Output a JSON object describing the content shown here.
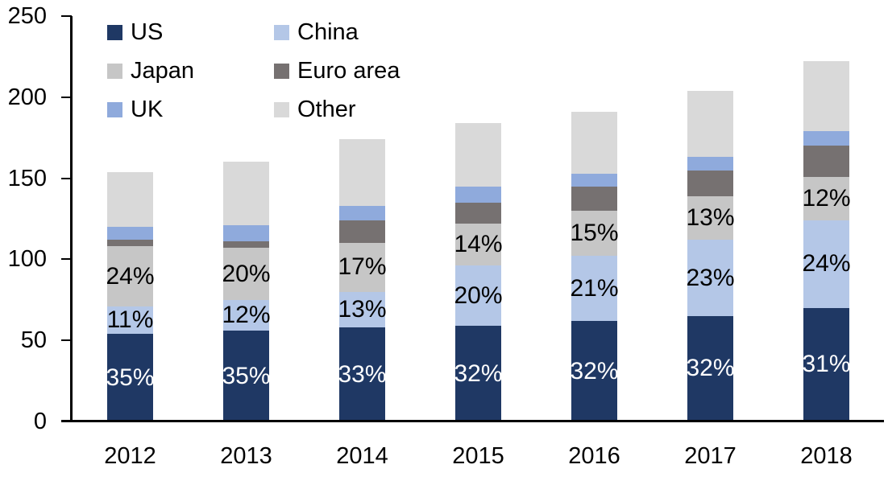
{
  "chart_data": {
    "type": "bar",
    "stacked": true,
    "title": "",
    "xlabel": "",
    "ylabel": "",
    "categories": [
      "2012",
      "2013",
      "2014",
      "2015",
      "2016",
      "2017",
      "2018"
    ],
    "series": [
      {
        "name": "US",
        "color": "#1F3864",
        "values": [
          54,
          56,
          58,
          59,
          62,
          65,
          70
        ],
        "segment_labels": [
          "35%",
          "35%",
          "33%",
          "32%",
          "32%",
          "32%",
          "31%"
        ],
        "segment_label_color": "#FFFFFF"
      },
      {
        "name": "China",
        "color": "#B4C7E7",
        "values": [
          17,
          19,
          22,
          37,
          40,
          47,
          54
        ],
        "segment_labels": [
          "11%",
          "12%",
          "13%",
          "20%",
          "21%",
          "23%",
          "24%"
        ],
        "segment_label_color": "#000000"
      },
      {
        "name": "Japan",
        "color": "#C6C6C6",
        "values": [
          37,
          32,
          30,
          26,
          28,
          27,
          27
        ],
        "segment_labels": [
          "24%",
          "20%",
          "17%",
          "14%",
          "15%",
          "13%",
          "12%"
        ],
        "segment_label_color": "#000000"
      },
      {
        "name": "Euro area",
        "color": "#767171",
        "values": [
          4,
          4,
          14,
          13,
          15,
          16,
          19
        ]
      },
      {
        "name": "UK",
        "color": "#8FAADC",
        "values": [
          8,
          10,
          9,
          10,
          8,
          8,
          9
        ]
      },
      {
        "name": "Other",
        "color": "#D9D9D9",
        "values": [
          34,
          39,
          41,
          39,
          38,
          41,
          43
        ]
      }
    ],
    "ylim": [
      0,
      250
    ],
    "ytick_labels": [
      "0",
      "50",
      "100",
      "150",
      "200",
      "250"
    ],
    "grid": false,
    "legend": {
      "position": "top-left",
      "columns": 2,
      "entries": [
        "US",
        "China",
        "Japan",
        "Euro area",
        "UK",
        "Other"
      ]
    }
  }
}
